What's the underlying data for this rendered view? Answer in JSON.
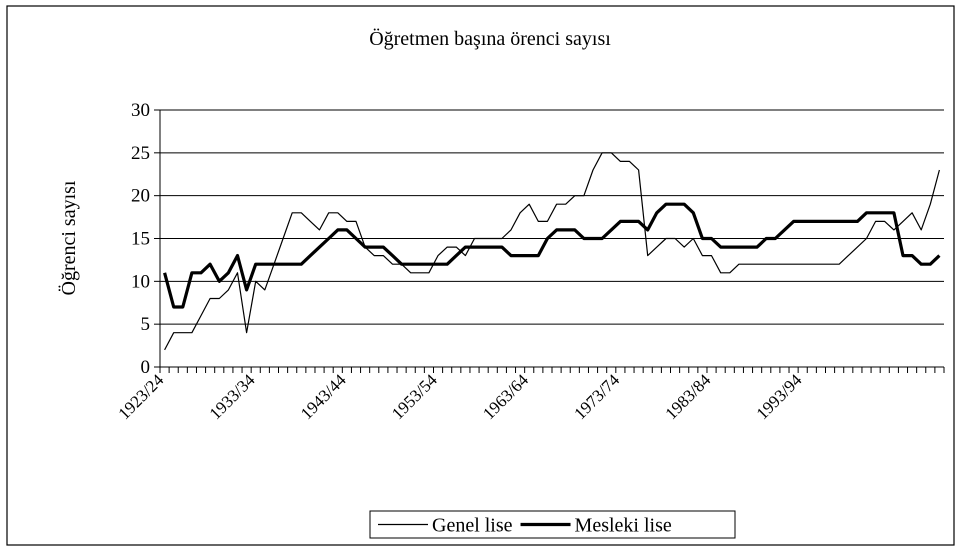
{
  "chart_data": {
    "type": "line",
    "title": "Öğretmen başına örenci sayısı",
    "y_label": "Öğrenci sayısı",
    "categories": [
      "1923/24",
      null,
      null,
      null,
      null,
      null,
      null,
      null,
      null,
      null,
      "1933/34",
      null,
      null,
      null,
      null,
      null,
      null,
      null,
      null,
      null,
      "1943/44",
      null,
      null,
      null,
      null,
      null,
      null,
      null,
      null,
      null,
      "1953/54",
      null,
      null,
      null,
      null,
      null,
      null,
      null,
      null,
      null,
      "1963/64",
      null,
      null,
      null,
      null,
      null,
      null,
      null,
      null,
      null,
      "1973/74",
      null,
      null,
      null,
      null,
      null,
      null,
      null,
      null,
      null,
      "1983/84",
      null,
      null,
      null,
      null,
      null,
      null,
      null,
      null,
      null,
      "1993/94",
      null,
      null,
      null,
      null,
      null,
      null,
      null,
      null,
      null,
      null,
      null,
      null,
      null,
      null,
      null
    ],
    "series": [
      {
        "name": "Genel lise",
        "color": "#000000",
        "width": 1.2,
        "values": [
          2,
          4,
          4,
          4,
          6,
          8,
          8,
          9,
          11,
          4,
          10,
          9,
          12,
          15,
          18,
          18,
          17,
          16,
          18,
          18,
          17,
          17,
          14,
          13,
          13,
          12,
          12,
          11,
          11,
          11,
          13,
          14,
          14,
          13,
          15,
          15,
          15,
          15,
          16,
          18,
          19,
          17,
          17,
          19,
          19,
          20,
          20,
          23,
          25,
          25,
          24,
          24,
          23,
          13,
          14,
          15,
          15,
          14,
          15,
          13,
          13,
          11,
          11,
          12,
          12,
          12,
          12,
          12,
          12,
          12,
          12,
          12,
          12,
          12,
          12,
          13,
          14,
          15,
          17,
          17,
          16,
          17,
          18,
          16,
          19,
          23
        ]
      },
      {
        "name": "Mesleki lise",
        "color": "#000000",
        "width": 3.2,
        "values": [
          11,
          7,
          7,
          11,
          11,
          12,
          10,
          11,
          13,
          9,
          12,
          12,
          12,
          12,
          12,
          12,
          13,
          14,
          15,
          16,
          16,
          15,
          14,
          14,
          14,
          13,
          12,
          12,
          12,
          12,
          12,
          12,
          13,
          14,
          14,
          14,
          14,
          14,
          13,
          13,
          13,
          13,
          15,
          16,
          16,
          16,
          15,
          15,
          15,
          16,
          17,
          17,
          17,
          16,
          18,
          19,
          19,
          19,
          18,
          15,
          15,
          14,
          14,
          14,
          14,
          14,
          15,
          15,
          16,
          17,
          17,
          17,
          17,
          17,
          17,
          17,
          17,
          18,
          18,
          18,
          18,
          13,
          13,
          12,
          12,
          13
        ]
      }
    ],
    "ylim": [
      0,
      30
    ],
    "yticks": [
      0,
      5,
      10,
      15,
      20,
      25,
      30
    ],
    "grid": true,
    "legend": "bottom"
  }
}
